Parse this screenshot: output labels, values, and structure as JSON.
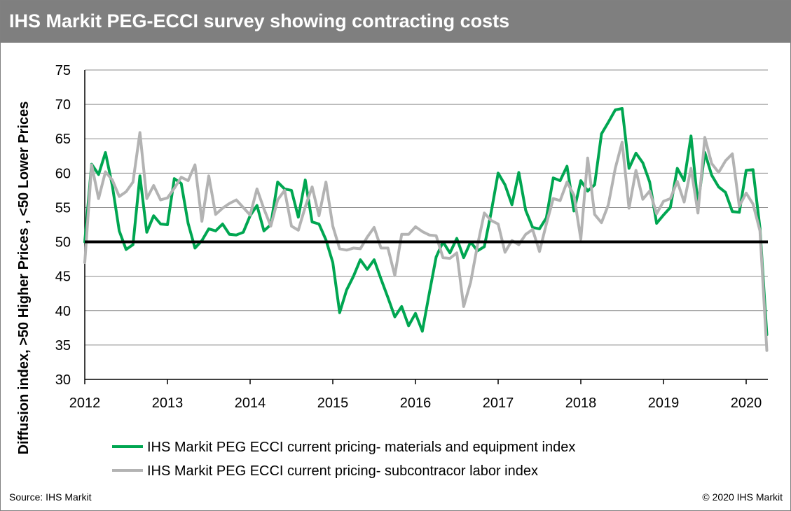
{
  "title": "IHS Markit PEG-ECCI survey showing contracting costs",
  "source": "Source: IHS Markit",
  "copyright": "© 2020 IHS Markit",
  "chart_data": {
    "type": "line",
    "ylabel": "Diffusion index, >50 Higher Prices , <50 Lower Prices",
    "xlabel": "",
    "ylim": [
      30,
      75
    ],
    "yticks": [
      30,
      35,
      40,
      45,
      50,
      55,
      60,
      65,
      70,
      75
    ],
    "xlim": [
      2012,
      2020.25
    ],
    "xticks": [
      "2012",
      "2013",
      "2014",
      "2015",
      "2016",
      "2017",
      "2018",
      "2019",
      "2020"
    ],
    "grid": true,
    "reference_line": 50,
    "legend_position": "bottom",
    "series": [
      {
        "name": "IHS Markit PEG ECCI current pricing- materials and equipment index",
        "color": "#00a651",
        "start": "2012-01",
        "values": [
          50.0,
          61.3,
          59.8,
          63.0,
          58.2,
          51.6,
          48.9,
          49.6,
          59.6,
          51.4,
          53.8,
          52.6,
          52.5,
          59.2,
          58.5,
          52.7,
          49.1,
          50.2,
          51.9,
          51.6,
          52.6,
          51.1,
          51.0,
          51.4,
          53.8,
          55.3,
          51.6,
          52.5,
          58.7,
          57.7,
          57.5,
          53.6,
          59.0,
          52.9,
          52.6,
          50.3,
          47.0,
          39.7,
          43.0,
          45.0,
          47.4,
          46.0,
          47.4,
          44.6,
          41.9,
          39.1,
          40.6,
          37.8,
          39.6,
          37.0,
          42.5,
          47.8,
          50.0,
          48.4,
          50.5,
          47.7,
          50.0,
          48.7,
          49.3,
          54.4,
          60.0,
          58.3,
          55.4,
          60.1,
          54.6,
          52.1,
          51.9,
          53.5,
          59.3,
          58.9,
          61.0,
          54.5,
          58.9,
          57.4,
          58.3,
          65.7,
          67.4,
          69.2,
          69.4,
          60.7,
          62.9,
          61.5,
          58.7,
          52.7,
          53.9,
          55.0,
          60.7,
          58.9,
          65.4,
          55.4,
          63.0,
          59.7,
          58.0,
          57.2,
          54.4,
          54.3,
          60.4,
          60.5,
          52.0,
          36.5
        ]
      },
      {
        "name": "IHS Markit PEG ECCI current pricing- subcontracor labor index",
        "color": "#b3b3b3",
        "start": "2012-01",
        "values": [
          47.0,
          61.2,
          56.3,
          60.2,
          59.0,
          56.6,
          57.3,
          58.7,
          65.9,
          56.3,
          58.2,
          56.1,
          56.4,
          57.8,
          59.4,
          58.9,
          61.2,
          53.0,
          59.6,
          54.0,
          54.9,
          55.6,
          56.1,
          55.0,
          53.9,
          57.7,
          54.8,
          52.3,
          56.1,
          57.5,
          52.3,
          51.7,
          55.1,
          58.0,
          53.8,
          58.7,
          52.3,
          49.0,
          48.8,
          49.1,
          49.0,
          50.7,
          52.1,
          49.1,
          49.1,
          45.1,
          51.1,
          51.1,
          52.2,
          51.5,
          51.0,
          50.9,
          47.7,
          47.6,
          48.4,
          40.6,
          44.1,
          49.5,
          54.2,
          53.1,
          52.6,
          48.5,
          50.2,
          49.6,
          51.1,
          51.8,
          48.6,
          52.6,
          56.3,
          56.0,
          58.7,
          56.8,
          50.4,
          62.2,
          54.0,
          52.8,
          55.4,
          60.7,
          64.5,
          54.9,
          60.4,
          56.2,
          57.4,
          54.1,
          55.9,
          56.3,
          58.8,
          55.8,
          60.7,
          54.2,
          65.2,
          61.4,
          60.1,
          61.8,
          62.8,
          55.2,
          57.1,
          55.5,
          51.6,
          34.2
        ]
      }
    ]
  }
}
